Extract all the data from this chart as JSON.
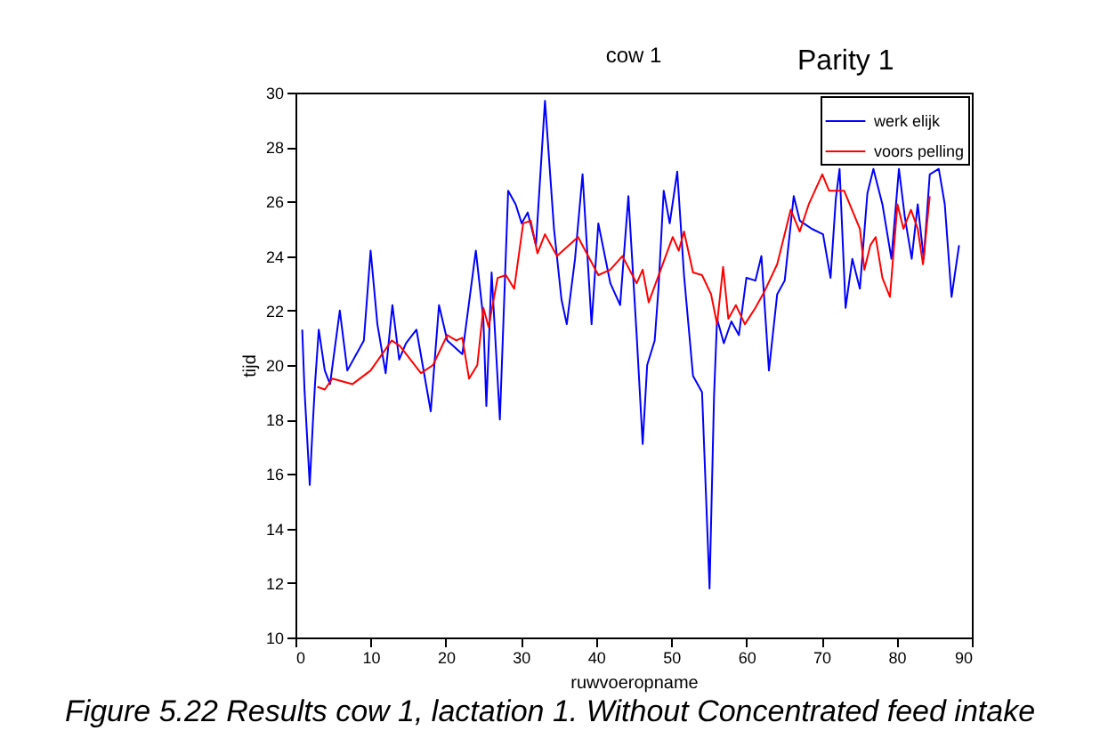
{
  "chart_data": {
    "type": "line",
    "title": "cow 1",
    "xlabel": "ruwvoeropname",
    "ylabel": "tijd",
    "annotations": [
      "Parity  1",
      "Figure 5.22 Results cow 1, lactation 1. Without Concentrated feed intake"
    ],
    "xlim": [
      0,
      90
    ],
    "xticks": [
      0,
      10,
      20,
      30,
      40,
      50,
      60,
      70,
      80,
      90
    ],
    "ylim": [
      10,
      30
    ],
    "yticks": [
      10,
      12,
      14,
      16,
      18,
      20,
      22,
      24,
      26,
      28,
      30
    ],
    "grid": false,
    "legend": "top right",
    "line_style": "solid",
    "marker": "none",
    "series": [
      {
        "name": "werk elijk",
        "color": "#0000ff",
        "x": [
          0.9,
          1.2,
          1.9,
          2.3,
          2.6,
          3.1,
          3.9,
          4.6,
          5.9,
          6.9,
          9.1,
          10.0,
          10.9,
          12.0,
          12.9,
          13.8,
          14.7,
          16.1,
          18.0,
          19.1,
          20.2,
          22.2,
          24.0,
          25.0,
          25.4,
          26.1,
          27.2,
          28.3,
          29.3,
          30.1,
          30.9,
          32.0,
          33.2,
          34.4,
          35.4,
          36.1,
          37.2,
          38.2,
          39.4,
          40.3,
          41.9,
          43.2,
          44.3,
          45.4,
          46.2,
          46.8,
          47.8,
          48.3,
          49.0,
          49.8,
          50.8,
          51.7,
          52.9,
          54.1,
          54.6,
          55.1,
          55.7,
          56.1,
          57.0,
          58.0,
          59.0,
          60.0,
          61.2,
          62.0,
          63.0,
          64.1,
          65.1,
          66.3,
          67.1,
          68.7,
          70.2,
          71.2,
          71.9,
          72.4,
          73.2,
          74.1,
          75.1,
          76.1,
          76.9,
          78.1,
          79.3,
          80.3,
          81.1,
          82.0,
          82.8,
          83.6,
          84.4,
          85.6,
          86.4,
          87.3,
          88.3
        ],
        "values": [
          21.3,
          19.1,
          15.6,
          17.8,
          19.3,
          21.3,
          19.8,
          19.3,
          22.0,
          19.8,
          20.9,
          24.2,
          21.5,
          19.7,
          22.2,
          20.2,
          20.8,
          21.3,
          18.3,
          22.2,
          20.9,
          20.4,
          24.2,
          21.7,
          18.5,
          23.4,
          18.0,
          26.4,
          25.9,
          25.2,
          25.6,
          24.4,
          29.7,
          25.0,
          22.4,
          21.5,
          23.9,
          27.0,
          21.5,
          25.2,
          23.0,
          22.2,
          26.2,
          21.1,
          17.1,
          20.0,
          20.9,
          22.8,
          26.4,
          25.2,
          27.1,
          23.3,
          19.6,
          19.0,
          15.4,
          11.8,
          18.9,
          21.7,
          20.8,
          21.6,
          21.1,
          23.2,
          23.1,
          24.0,
          19.8,
          22.6,
          23.1,
          26.2,
          25.3,
          25.0,
          24.8,
          23.2,
          26.1,
          27.2,
          22.1,
          23.9,
          22.8,
          26.3,
          27.2,
          25.9,
          23.9,
          27.2,
          25.4,
          23.9,
          25.9,
          23.9,
          27.0,
          27.2,
          25.9,
          22.5,
          24.4
        ]
      },
      {
        "name": "voors pelling",
        "color": "#ff0000",
        "x": [
          2.9,
          3.9,
          4.9,
          7.6,
          10.0,
          12.8,
          13.9,
          16.7,
          18.3,
          20.2,
          21.4,
          22.2,
          23.1,
          24.2,
          25.0,
          25.7,
          26.9,
          28.0,
          29.1,
          30.3,
          31.3,
          32.2,
          33.2,
          34.8,
          37.6,
          40.3,
          41.9,
          43.5,
          45.4,
          46.2,
          47.0,
          48.2,
          50.2,
          51.0,
          51.7,
          52.9,
          54.1,
          55.3,
          56.1,
          56.9,
          57.6,
          58.6,
          59.8,
          61.2,
          62.4,
          64.1,
          65.9,
          67.1,
          68.3,
          70.1,
          71.0,
          73.0,
          74.2,
          75.1,
          75.7,
          76.5,
          77.2,
          78.1,
          79.1,
          80.1,
          80.9,
          81.9,
          82.8,
          83.5,
          84.4
        ],
        "values": [
          19.2,
          19.1,
          19.5,
          19.3,
          19.8,
          20.9,
          20.7,
          19.7,
          20.0,
          21.1,
          20.9,
          21.0,
          19.5,
          20.0,
          22.1,
          21.4,
          23.2,
          23.3,
          22.8,
          25.2,
          25.3,
          24.1,
          24.8,
          24.0,
          24.7,
          23.3,
          23.5,
          24.0,
          23.0,
          23.5,
          22.3,
          23.2,
          24.7,
          24.2,
          24.9,
          23.4,
          23.3,
          22.6,
          21.5,
          23.6,
          21.7,
          22.2,
          21.5,
          22.1,
          22.7,
          23.7,
          25.7,
          24.9,
          25.9,
          27.0,
          26.4,
          26.4,
          25.6,
          25.0,
          23.5,
          24.4,
          24.7,
          23.2,
          22.5,
          25.9,
          25.0,
          25.7,
          25.0,
          23.7,
          26.2
        ]
      }
    ]
  }
}
